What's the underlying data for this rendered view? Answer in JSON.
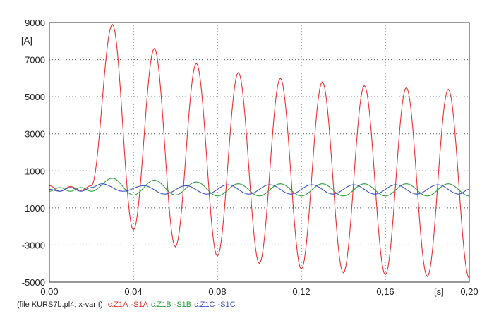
{
  "chart_data": {
    "type": "line",
    "xlabel": "[s]",
    "ylabel": "[A]",
    "xlim": [
      0,
      0.2
    ],
    "ylim": [
      -5000,
      9000
    ],
    "x_ticks": [
      "0,00",
      "0,04",
      "0,08",
      "0,12",
      "0,16",
      "0,20"
    ],
    "y_ticks": [
      "9000",
      "7000",
      "5000",
      "3000",
      "1000",
      "-1000",
      "-3000",
      "-5000"
    ],
    "grid": true,
    "legend_placement": "bottom",
    "legend": {
      "prefix": "(file KURS7b.pl4; x-var t)",
      "entries": [
        {
          "label": "c:Z1A",
          "color": "#e8312f"
        },
        {
          "label": "-S1A",
          "color": "#e8312f"
        },
        {
          "label": "c:Z1B",
          "color": "#2e9e3e"
        },
        {
          "label": "-S1B",
          "color": "#2e9e3e"
        },
        {
          "label": "c:Z1C",
          "color": "#3b4fc4"
        },
        {
          "label": "-S1C",
          "color": "#3b4fc4"
        }
      ]
    },
    "series": [
      {
        "color": "#e8312f",
        "points": [
          [
            0.0,
            200
          ],
          [
            0.005,
            -100
          ],
          [
            0.01,
            150
          ],
          [
            0.015,
            -50
          ],
          [
            0.02,
            200
          ],
          [
            0.03,
            8900
          ],
          [
            0.04,
            -2200
          ],
          [
            0.05,
            7600
          ],
          [
            0.06,
            -3100
          ],
          [
            0.07,
            6800
          ],
          [
            0.08,
            -3600
          ],
          [
            0.09,
            6300
          ],
          [
            0.1,
            -4000
          ],
          [
            0.11,
            6000
          ],
          [
            0.12,
            -4300
          ],
          [
            0.13,
            5800
          ],
          [
            0.14,
            -4500
          ],
          [
            0.15,
            5600
          ],
          [
            0.16,
            -4600
          ],
          [
            0.17,
            5500
          ],
          [
            0.18,
            -4700
          ],
          [
            0.19,
            5400
          ],
          [
            0.2,
            -4800
          ]
        ]
      },
      {
        "color": "#2e9e3e",
        "points": [
          [
            0.0,
            -100
          ],
          [
            0.005,
            100
          ],
          [
            0.01,
            -100
          ],
          [
            0.015,
            100
          ],
          [
            0.02,
            -100
          ],
          [
            0.03,
            600
          ],
          [
            0.04,
            -300
          ],
          [
            0.05,
            500
          ],
          [
            0.06,
            -300
          ],
          [
            0.07,
            400
          ],
          [
            0.08,
            -350
          ],
          [
            0.09,
            300
          ],
          [
            0.1,
            -350
          ],
          [
            0.11,
            300
          ],
          [
            0.12,
            -350
          ],
          [
            0.13,
            300
          ],
          [
            0.14,
            -350
          ],
          [
            0.15,
            300
          ],
          [
            0.16,
            -350
          ],
          [
            0.17,
            300
          ],
          [
            0.18,
            -350
          ],
          [
            0.19,
            300
          ],
          [
            0.2,
            -350
          ]
        ]
      },
      {
        "color": "#3b4fc4",
        "points": [
          [
            0.0,
            0
          ],
          [
            0.005,
            -100
          ],
          [
            0.01,
            100
          ],
          [
            0.015,
            -100
          ],
          [
            0.02,
            100
          ],
          [
            0.025,
            300
          ],
          [
            0.035,
            -100
          ],
          [
            0.045,
            200
          ],
          [
            0.055,
            -250
          ],
          [
            0.065,
            200
          ],
          [
            0.075,
            -250
          ],
          [
            0.085,
            250
          ],
          [
            0.095,
            -250
          ],
          [
            0.105,
            250
          ],
          [
            0.115,
            -250
          ],
          [
            0.125,
            250
          ],
          [
            0.135,
            -250
          ],
          [
            0.145,
            250
          ],
          [
            0.155,
            -250
          ],
          [
            0.165,
            250
          ],
          [
            0.175,
            -250
          ],
          [
            0.185,
            250
          ],
          [
            0.195,
            -250
          ],
          [
            0.2,
            0
          ]
        ]
      }
    ]
  }
}
